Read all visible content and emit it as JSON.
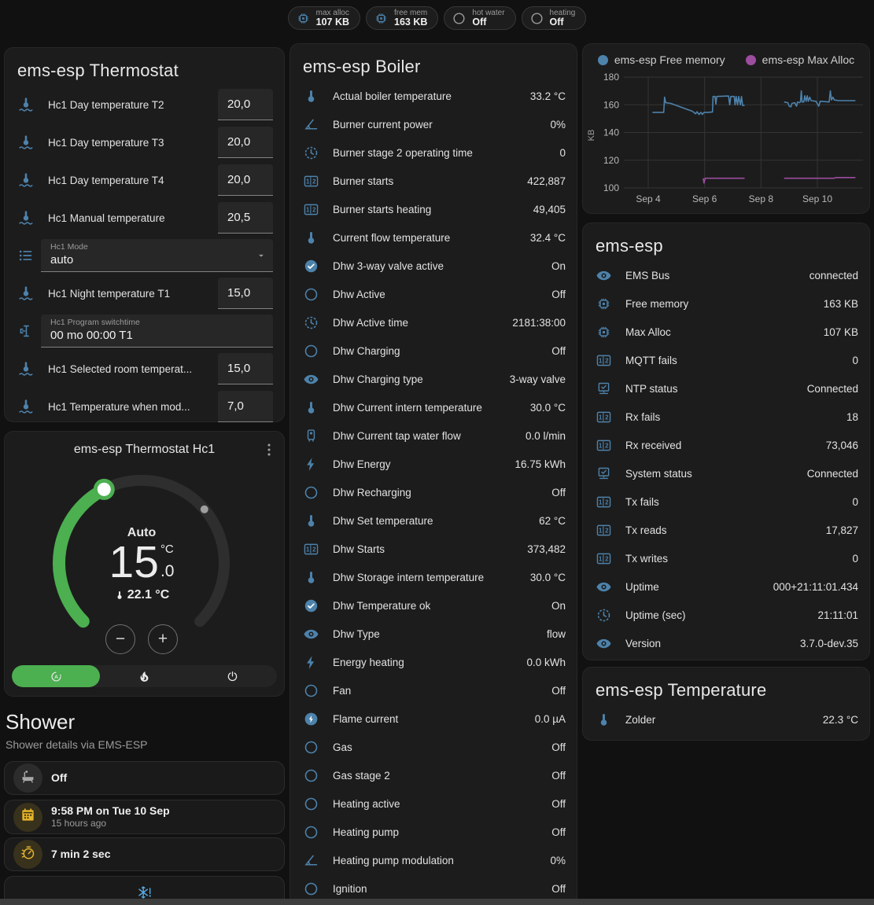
{
  "colors": {
    "icon_blue": "#4d82ab",
    "green": "#4caf50",
    "amber": "#e3b32a",
    "gray": "#a8a8a8",
    "tile_blue": "#55a7e0",
    "chart_blue": "#4d82ab",
    "chart_purple": "#9c4d9e"
  },
  "badges": [
    {
      "icon": "chip",
      "color": "#4d82ab",
      "label": "max alloc",
      "value": "107 KB"
    },
    {
      "icon": "chip",
      "color": "#4d82ab",
      "label": "free mem",
      "value": "163 KB"
    },
    {
      "icon": "circle",
      "color": "#9b9b9b",
      "label": "hot water",
      "value": "Off"
    },
    {
      "icon": "circle",
      "color": "#9b9b9b",
      "label": "heating",
      "value": "Off"
    }
  ],
  "thermostat_card": {
    "title": "ems-esp Thermostat",
    "rows": [
      {
        "type": "number",
        "icon": "thermometer-water",
        "label": "Hc1 Day temperature T2",
        "value": "20,0"
      },
      {
        "type": "number",
        "icon": "thermometer-water",
        "label": "Hc1 Day temperature T3",
        "value": "20,0"
      },
      {
        "type": "number",
        "icon": "thermometer-water",
        "label": "Hc1 Day temperature T4",
        "value": "20,0"
      },
      {
        "type": "number",
        "icon": "thermometer-water",
        "label": "Hc1 Manual temperature",
        "value": "20,5"
      },
      {
        "type": "select",
        "icon": "format-list",
        "label": "Hc1 Mode",
        "value": "auto"
      },
      {
        "type": "number",
        "icon": "thermometer-water",
        "label": "Hc1 Night temperature T1",
        "value": "15,0"
      },
      {
        "type": "textfield",
        "icon": "cursor-text",
        "label": "Hc1 Program switchtime",
        "value": "00 mo 00:00 T1"
      },
      {
        "type": "number",
        "icon": "thermometer-water",
        "label": "Hc1 Selected room temperat...",
        "value": "15,0"
      },
      {
        "type": "number",
        "icon": "thermometer-water",
        "label": "Hc1 Temperature when mod...",
        "value": "7,0"
      }
    ]
  },
  "hc1_card": {
    "title": "ems-esp Thermostat Hc1",
    "mode_label": "Auto",
    "target_int": "15",
    "target_dec": ".0",
    "target_unit": "°C",
    "current_temp": "22.1 °C",
    "minus_label": "−",
    "plus_label": "+",
    "dial": {
      "start_angle": 225,
      "end_angle": -45,
      "value_angle": 117,
      "current_angle": 40.5,
      "track_color": "#2e2e2e",
      "active_color": "#4caf50"
    },
    "mode_buttons": [
      {
        "icon": "auto-mode",
        "active": true
      },
      {
        "icon": "flame",
        "active": false
      },
      {
        "icon": "power",
        "active": false
      }
    ]
  },
  "shower": {
    "title": "Shower",
    "subtitle": "Shower details via EMS-ESP",
    "tiles": [
      {
        "icon": "bathtub",
        "style": "gray",
        "primary": "Off",
        "secondary": ""
      },
      {
        "icon": "calendar",
        "style": "amber",
        "primary": "9:58 PM on Tue 10 Sep",
        "secondary": "15 hours ago"
      },
      {
        "icon": "timer",
        "style": "amber",
        "primary": "7 min 2 sec",
        "secondary": ""
      },
      {
        "icon": "snowflake-alert",
        "style": "blue",
        "primary": "",
        "secondary": "",
        "centered": true
      }
    ]
  },
  "boiler_card": {
    "title": "ems-esp Boiler",
    "rows": [
      {
        "icon": "thermometer",
        "label": "Actual boiler temperature",
        "value": "33.2 °C"
      },
      {
        "icon": "angle",
        "label": "Burner current power",
        "value": "0%"
      },
      {
        "icon": "clock",
        "label": "Burner stage 2 operating time",
        "value": "0"
      },
      {
        "icon": "counter",
        "label": "Burner starts",
        "value": "422,887"
      },
      {
        "icon": "counter",
        "label": "Burner starts heating",
        "value": "49,405"
      },
      {
        "icon": "thermometer",
        "label": "Current flow temperature",
        "value": "32.4 °C"
      },
      {
        "icon": "check-circle",
        "label": "Dhw 3-way valve active",
        "value": "On"
      },
      {
        "icon": "circle",
        "label": "Dhw Active",
        "value": "Off"
      },
      {
        "icon": "clock",
        "label": "Dhw Active time",
        "value": "2181:38:00"
      },
      {
        "icon": "circle",
        "label": "Dhw Charging",
        "value": "Off"
      },
      {
        "icon": "eye",
        "label": "Dhw Charging type",
        "value": "3-way valve"
      },
      {
        "icon": "thermometer",
        "label": "Dhw Current intern temperature",
        "value": "30.0 °C"
      },
      {
        "icon": "water-boiler",
        "label": "Dhw Current tap water flow",
        "value": "0.0 l/min"
      },
      {
        "icon": "lightning",
        "label": "Dhw Energy",
        "value": "16.75 kWh"
      },
      {
        "icon": "circle",
        "label": "Dhw Recharging",
        "value": "Off"
      },
      {
        "icon": "thermometer",
        "label": "Dhw Set temperature",
        "value": "62 °C"
      },
      {
        "icon": "counter",
        "label": "Dhw Starts",
        "value": "373,482"
      },
      {
        "icon": "thermometer",
        "label": "Dhw Storage intern temperature",
        "value": "30.0 °C"
      },
      {
        "icon": "check-circle",
        "label": "Dhw Temperature ok",
        "value": "On"
      },
      {
        "icon": "eye",
        "label": "Dhw Type",
        "value": "flow"
      },
      {
        "icon": "lightning",
        "label": "Energy heating",
        "value": "0.0 kWh"
      },
      {
        "icon": "circle",
        "label": "Fan",
        "value": "Off"
      },
      {
        "icon": "flash-circle",
        "label": "Flame current",
        "value": "0.0 µA"
      },
      {
        "icon": "circle",
        "label": "Gas",
        "value": "Off"
      },
      {
        "icon": "circle",
        "label": "Gas stage 2",
        "value": "Off"
      },
      {
        "icon": "circle",
        "label": "Heating active",
        "value": "Off"
      },
      {
        "icon": "circle",
        "label": "Heating pump",
        "value": "Off"
      },
      {
        "icon": "angle",
        "label": "Heating pump modulation",
        "value": "0%"
      },
      {
        "icon": "circle",
        "label": "Ignition",
        "value": "Off"
      }
    ]
  },
  "emsesp_card": {
    "title": "ems-esp",
    "rows": [
      {
        "icon": "eye",
        "label": "EMS Bus",
        "value": "connected"
      },
      {
        "icon": "chip",
        "label": "Free memory",
        "value": "163 KB"
      },
      {
        "icon": "chip",
        "label": "Max Alloc",
        "value": "107 KB"
      },
      {
        "icon": "counter",
        "label": "MQTT fails",
        "value": "0"
      },
      {
        "icon": "network",
        "label": "NTP status",
        "value": "Connected"
      },
      {
        "icon": "counter",
        "label": "Rx fails",
        "value": "18"
      },
      {
        "icon": "counter",
        "label": "Rx received",
        "value": "73,046"
      },
      {
        "icon": "network",
        "label": "System status",
        "value": "Connected"
      },
      {
        "icon": "counter",
        "label": "Tx fails",
        "value": "0"
      },
      {
        "icon": "counter",
        "label": "Tx reads",
        "value": "17,827"
      },
      {
        "icon": "counter",
        "label": "Tx writes",
        "value": "0"
      },
      {
        "icon": "eye",
        "label": "Uptime",
        "value": "000+21:11:01.434"
      },
      {
        "icon": "clock",
        "label": "Uptime (sec)",
        "value": "21:11:01"
      },
      {
        "icon": "eye",
        "label": "Version",
        "value": "3.7.0-dev.35"
      }
    ]
  },
  "temperature_card": {
    "title": "ems-esp Temperature",
    "rows": [
      {
        "icon": "thermometer",
        "label": "Zolder",
        "value": "22.3 °C"
      }
    ]
  },
  "chart_data": {
    "type": "line",
    "ylabel": "KB",
    "y_ticks": [
      100,
      120,
      140,
      160,
      180
    ],
    "x_ticks": [
      {
        "v": 4,
        "label": "Sep 4"
      },
      {
        "v": 6,
        "label": "Sep 6"
      },
      {
        "v": 8,
        "label": "Sep 8"
      },
      {
        "v": 10,
        "label": "Sep 10"
      }
    ],
    "x_domain": [
      3.35,
      11.6
    ],
    "y_domain": [
      95,
      186
    ],
    "grid": true,
    "legend_position": "top",
    "series": [
      {
        "name": "ems-esp Free memory",
        "color": "#4d82ab",
        "segments": [
          [
            [
              4.15,
              154.5
            ],
            [
              4.55,
              154.5
            ],
            [
              4.58,
              165.5
            ],
            [
              4.62,
              161.5
            ],
            [
              4.8,
              161
            ],
            [
              5.0,
              159.5
            ],
            [
              5.2,
              158
            ],
            [
              5.4,
              156.5
            ],
            [
              5.55,
              155.5
            ],
            [
              5.62,
              154.5
            ],
            [
              5.68,
              153.5
            ],
            [
              5.73,
              155
            ],
            [
              5.8,
              153
            ],
            [
              5.87,
              154.5
            ],
            [
              5.92,
              153
            ],
            [
              5.98,
              154.5
            ],
            [
              6.1,
              154.5
            ],
            [
              6.28,
              154.8
            ],
            [
              6.3,
              166
            ],
            [
              6.37,
              166
            ],
            [
              6.4,
              160.5
            ],
            [
              6.43,
              166
            ],
            [
              6.85,
              166.3
            ],
            [
              6.89,
              160
            ],
            [
              6.93,
              166
            ],
            [
              7.05,
              166
            ],
            [
              7.08,
              160
            ],
            [
              7.12,
              166
            ],
            [
              7.17,
              160
            ],
            [
              7.21,
              166
            ],
            [
              7.27,
              160
            ],
            [
              7.31,
              166
            ],
            [
              7.35,
              159.5
            ],
            [
              7.42,
              159.5
            ]
          ],
          [
            [
              8.82,
              162
            ],
            [
              8.95,
              161.5
            ],
            [
              9.0,
              159
            ],
            [
              9.06,
              158.5
            ],
            [
              9.1,
              161
            ],
            [
              9.2,
              161.5
            ],
            [
              9.26,
              159
            ],
            [
              9.3,
              162
            ],
            [
              9.36,
              161.5
            ],
            [
              9.4,
              162
            ],
            [
              9.43,
              170
            ],
            [
              9.46,
              162
            ],
            [
              9.52,
              162
            ],
            [
              9.55,
              166.5
            ],
            [
              9.6,
              162.5
            ],
            [
              9.64,
              166.5
            ],
            [
              9.68,
              162.5
            ],
            [
              9.73,
              165.5
            ],
            [
              9.78,
              163
            ],
            [
              9.95,
              162.5
            ],
            [
              10.05,
              159
            ],
            [
              10.1,
              162.5
            ],
            [
              10.42,
              162
            ],
            [
              10.46,
              170
            ],
            [
              10.5,
              163.5
            ],
            [
              10.55,
              165.5
            ],
            [
              10.6,
              163.5
            ],
            [
              10.75,
              163
            ],
            [
              11.35,
              163
            ]
          ]
        ]
      },
      {
        "name": "ems-esp Max Alloc",
        "color": "#9c4d9e",
        "segments": [
          [
            [
              5.95,
              107
            ],
            [
              5.98,
              103.5
            ],
            [
              6.02,
              107
            ],
            [
              7.42,
              107
            ]
          ],
          [
            [
              8.82,
              107
            ],
            [
              10.6,
              107
            ],
            [
              10.65,
              107.5
            ],
            [
              11.35,
              107.5
            ]
          ]
        ]
      }
    ]
  }
}
